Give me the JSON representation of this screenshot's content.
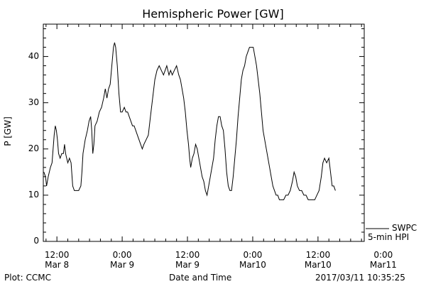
{
  "chart_data": {
    "type": "line",
    "title": "Hemispheric Power [GW]",
    "ylabel": "P [GW]",
    "xlabel": "Date and Time",
    "ylim": [
      0,
      47
    ],
    "xlim_hours": [
      9.5,
      68.5
    ],
    "yticks": [
      0,
      10,
      20,
      30,
      40
    ],
    "xticks": [
      {
        "x": 12,
        "line1": "12:00",
        "line2": "Mar 8"
      },
      {
        "x": 24,
        "line1": "0:00",
        "line2": "Mar 9"
      },
      {
        "x": 36,
        "line1": "12:00",
        "line2": "Mar 9"
      },
      {
        "x": 48,
        "line1": "0:00",
        "line2": "Mar10"
      },
      {
        "x": 60,
        "line1": "12:00",
        "line2": "Mar10"
      },
      {
        "x": 72,
        "line1": "0:00",
        "line2": "Mar11"
      }
    ],
    "x_unit_note": "hours from 2017-03-08 00:00",
    "grid": false,
    "legend_entries": [
      "SWPC",
      "5-min HPI"
    ],
    "footer_left": "Plot: CCMC",
    "footer_right": "2017/03/11 10:35:25",
    "series": [
      {
        "name": "SWPC",
        "color": "#000000",
        "points": [
          [
            9.6,
            15
          ],
          [
            9.9,
            14
          ],
          [
            10.1,
            12
          ],
          [
            10.4,
            14
          ],
          [
            10.8,
            16
          ],
          [
            11.1,
            17
          ],
          [
            11.3,
            20
          ],
          [
            11.5,
            23
          ],
          [
            11.7,
            25
          ],
          [
            11.9,
            24
          ],
          [
            12.1,
            22
          ],
          [
            12.3,
            19
          ],
          [
            12.6,
            18
          ],
          [
            12.9,
            19
          ],
          [
            13.2,
            19
          ],
          [
            13.4,
            21
          ],
          [
            13.6,
            19
          ],
          [
            13.8,
            18
          ],
          [
            14.0,
            17
          ],
          [
            14.3,
            18
          ],
          [
            14.6,
            17
          ],
          [
            14.9,
            12
          ],
          [
            15.2,
            11
          ],
          [
            15.5,
            11
          ],
          [
            16.0,
            11
          ],
          [
            16.4,
            12
          ],
          [
            16.6,
            15
          ],
          [
            16.8,
            19
          ],
          [
            17.2,
            22
          ],
          [
            17.6,
            24
          ],
          [
            17.9,
            26
          ],
          [
            18.2,
            27
          ],
          [
            18.4,
            24
          ],
          [
            18.6,
            19
          ],
          [
            18.8,
            21
          ],
          [
            19.0,
            25
          ],
          [
            19.4,
            26
          ],
          [
            19.8,
            28
          ],
          [
            20.2,
            29
          ],
          [
            20.6,
            31
          ],
          [
            20.9,
            33
          ],
          [
            21.2,
            31
          ],
          [
            21.5,
            33
          ],
          [
            21.8,
            34
          ],
          [
            22.1,
            38
          ],
          [
            22.4,
            42
          ],
          [
            22.6,
            43
          ],
          [
            22.8,
            42
          ],
          [
            23.1,
            38
          ],
          [
            23.4,
            32
          ],
          [
            23.7,
            28
          ],
          [
            24.0,
            28
          ],
          [
            24.4,
            29
          ],
          [
            24.7,
            28
          ],
          [
            25.0,
            28
          ],
          [
            25.3,
            27
          ],
          [
            25.6,
            26
          ],
          [
            25.9,
            25
          ],
          [
            26.2,
            25
          ],
          [
            26.5,
            24
          ],
          [
            26.8,
            23
          ],
          [
            27.1,
            22
          ],
          [
            27.4,
            21
          ],
          [
            27.7,
            20
          ],
          [
            28.0,
            21
          ],
          [
            28.4,
            22
          ],
          [
            28.8,
            23
          ],
          [
            29.2,
            27
          ],
          [
            29.6,
            31
          ],
          [
            30.0,
            35
          ],
          [
            30.4,
            37
          ],
          [
            30.8,
            38
          ],
          [
            31.2,
            37
          ],
          [
            31.6,
            36
          ],
          [
            31.9,
            37
          ],
          [
            32.2,
            38
          ],
          [
            32.6,
            36
          ],
          [
            32.9,
            37
          ],
          [
            33.2,
            36
          ],
          [
            33.6,
            37
          ],
          [
            34.0,
            38
          ],
          [
            34.4,
            36
          ],
          [
            34.7,
            35
          ],
          [
            35.0,
            33
          ],
          [
            35.3,
            31
          ],
          [
            35.6,
            28
          ],
          [
            35.9,
            24
          ],
          [
            36.2,
            21
          ],
          [
            36.4,
            18
          ],
          [
            36.6,
            16
          ],
          [
            36.9,
            18
          ],
          [
            37.2,
            19
          ],
          [
            37.5,
            21
          ],
          [
            37.8,
            20
          ],
          [
            38.1,
            18
          ],
          [
            38.4,
            16
          ],
          [
            38.7,
            14
          ],
          [
            39.0,
            13
          ],
          [
            39.3,
            11
          ],
          [
            39.6,
            10
          ],
          [
            39.9,
            12
          ],
          [
            40.2,
            14
          ],
          [
            40.5,
            16
          ],
          [
            40.8,
            18
          ],
          [
            41.1,
            22
          ],
          [
            41.4,
            25
          ],
          [
            41.7,
            27
          ],
          [
            42.0,
            27
          ],
          [
            42.3,
            25
          ],
          [
            42.6,
            24
          ],
          [
            42.9,
            20
          ],
          [
            43.2,
            15
          ],
          [
            43.5,
            12
          ],
          [
            43.8,
            11
          ],
          [
            44.1,
            11
          ],
          [
            44.4,
            14
          ],
          [
            44.7,
            18
          ],
          [
            45.0,
            22
          ],
          [
            45.3,
            27
          ],
          [
            45.6,
            31
          ],
          [
            45.9,
            35
          ],
          [
            46.2,
            37
          ],
          [
            46.5,
            38
          ],
          [
            46.8,
            40
          ],
          [
            47.1,
            41
          ],
          [
            47.4,
            42
          ],
          [
            47.8,
            42
          ],
          [
            48.1,
            42
          ],
          [
            48.4,
            40
          ],
          [
            48.7,
            38
          ],
          [
            49.0,
            35
          ],
          [
            49.3,
            32
          ],
          [
            49.6,
            28
          ],
          [
            49.9,
            24
          ],
          [
            50.2,
            22
          ],
          [
            50.5,
            20
          ],
          [
            50.8,
            18
          ],
          [
            51.1,
            16
          ],
          [
            51.4,
            14
          ],
          [
            51.7,
            12
          ],
          [
            52.0,
            11
          ],
          [
            52.3,
            10
          ],
          [
            52.6,
            10
          ],
          [
            52.9,
            9
          ],
          [
            53.3,
            9
          ],
          [
            53.7,
            9
          ],
          [
            54.1,
            10
          ],
          [
            54.5,
            10
          ],
          [
            54.9,
            11
          ],
          [
            55.3,
            13
          ],
          [
            55.6,
            15
          ],
          [
            55.9,
            14
          ],
          [
            56.2,
            12
          ],
          [
            56.6,
            11
          ],
          [
            57.0,
            11
          ],
          [
            57.4,
            10
          ],
          [
            57.8,
            10
          ],
          [
            58.2,
            9
          ],
          [
            58.6,
            9
          ],
          [
            59.0,
            9
          ],
          [
            59.4,
            9
          ],
          [
            59.8,
            10
          ],
          [
            60.2,
            11
          ],
          [
            60.6,
            14
          ],
          [
            60.9,
            17
          ],
          [
            61.2,
            18
          ],
          [
            61.6,
            17
          ],
          [
            62.0,
            18
          ],
          [
            62.3,
            15
          ],
          [
            62.6,
            12
          ],
          [
            62.9,
            12
          ],
          [
            63.2,
            11
          ]
        ]
      }
    ]
  }
}
